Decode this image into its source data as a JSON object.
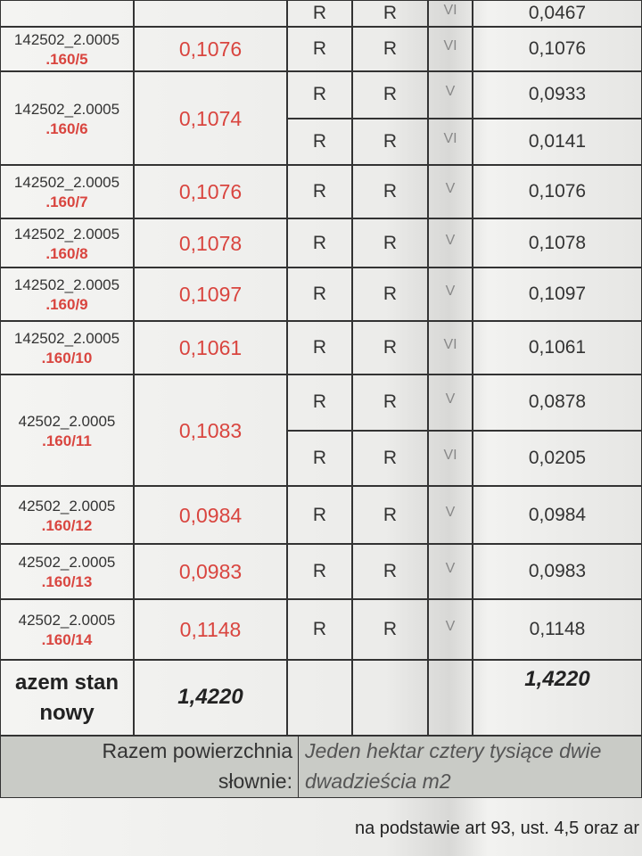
{
  "table": {
    "rows": [
      {
        "subrows": [
          [
            "R",
            "R",
            "VI",
            "0,0467"
          ]
        ]
      },
      {
        "id_top": "142502_2.0005",
        "id_bottom": ".160/5",
        "area": "0,1076",
        "subrows": [
          [
            "R",
            "R",
            "VI",
            "0,1076"
          ]
        ]
      },
      {
        "id_top": "142502_2.0005",
        "id_bottom": ".160/6",
        "area": "0,1074",
        "subrows": [
          [
            "R",
            "R",
            "V",
            "0,0933"
          ],
          [
            "R",
            "R",
            "VI",
            "0,0141"
          ]
        ]
      },
      {
        "id_top": "142502_2.0005",
        "id_bottom": ".160/7",
        "area": "0,1076",
        "subrows": [
          [
            "R",
            "R",
            "V",
            "0,1076"
          ]
        ]
      },
      {
        "id_top": "142502_2.0005",
        "id_bottom": ".160/8",
        "area": "0,1078",
        "subrows": [
          [
            "R",
            "R",
            "V",
            "0,1078"
          ]
        ]
      },
      {
        "id_top": "142502_2.0005",
        "id_bottom": ".160/9",
        "area": "0,1097",
        "subrows": [
          [
            "R",
            "R",
            "V",
            "0,1097"
          ]
        ]
      },
      {
        "id_top": "142502_2.0005",
        "id_bottom": ".160/10",
        "area": "0,1061",
        "subrows": [
          [
            "R",
            "R",
            "VI",
            "0,1061"
          ]
        ]
      },
      {
        "id_top": "42502_2.0005",
        "id_bottom": ".160/11",
        "area": "0,1083",
        "subrows": [
          [
            "R",
            "R",
            "V",
            "0,0878"
          ],
          [
            "R",
            "R",
            "VI",
            "0,0205"
          ]
        ]
      },
      {
        "id_top": "42502_2.0005",
        "id_bottom": ".160/12",
        "area": "0,0984",
        "subrows": [
          [
            "R",
            "R",
            "V",
            "0,0984"
          ]
        ]
      },
      {
        "id_top": "42502_2.0005",
        "id_bottom": ".160/13",
        "area": "0,0983",
        "subrows": [
          [
            "R",
            "R",
            "V",
            "0,0983"
          ]
        ]
      },
      {
        "id_top": "42502_2.0005",
        "id_bottom": ".160/14",
        "area": "0,1148",
        "subrows": [
          [
            "R",
            "R",
            "V",
            "0,1148"
          ]
        ]
      }
    ],
    "total": {
      "label_top": "azem stan",
      "label_bottom": "nowy",
      "area": "1,4220",
      "area_sum": "1,4220"
    }
  },
  "footer": {
    "label_top": "Razem powierzchnia",
    "label_bottom": "słownie:",
    "words_top": "Jeden hektar cztery tysiące dwie",
    "words_bottom": "dwadzieścia m2"
  },
  "note": "na podstawie art 93, ust. 4,5 oraz ar"
}
